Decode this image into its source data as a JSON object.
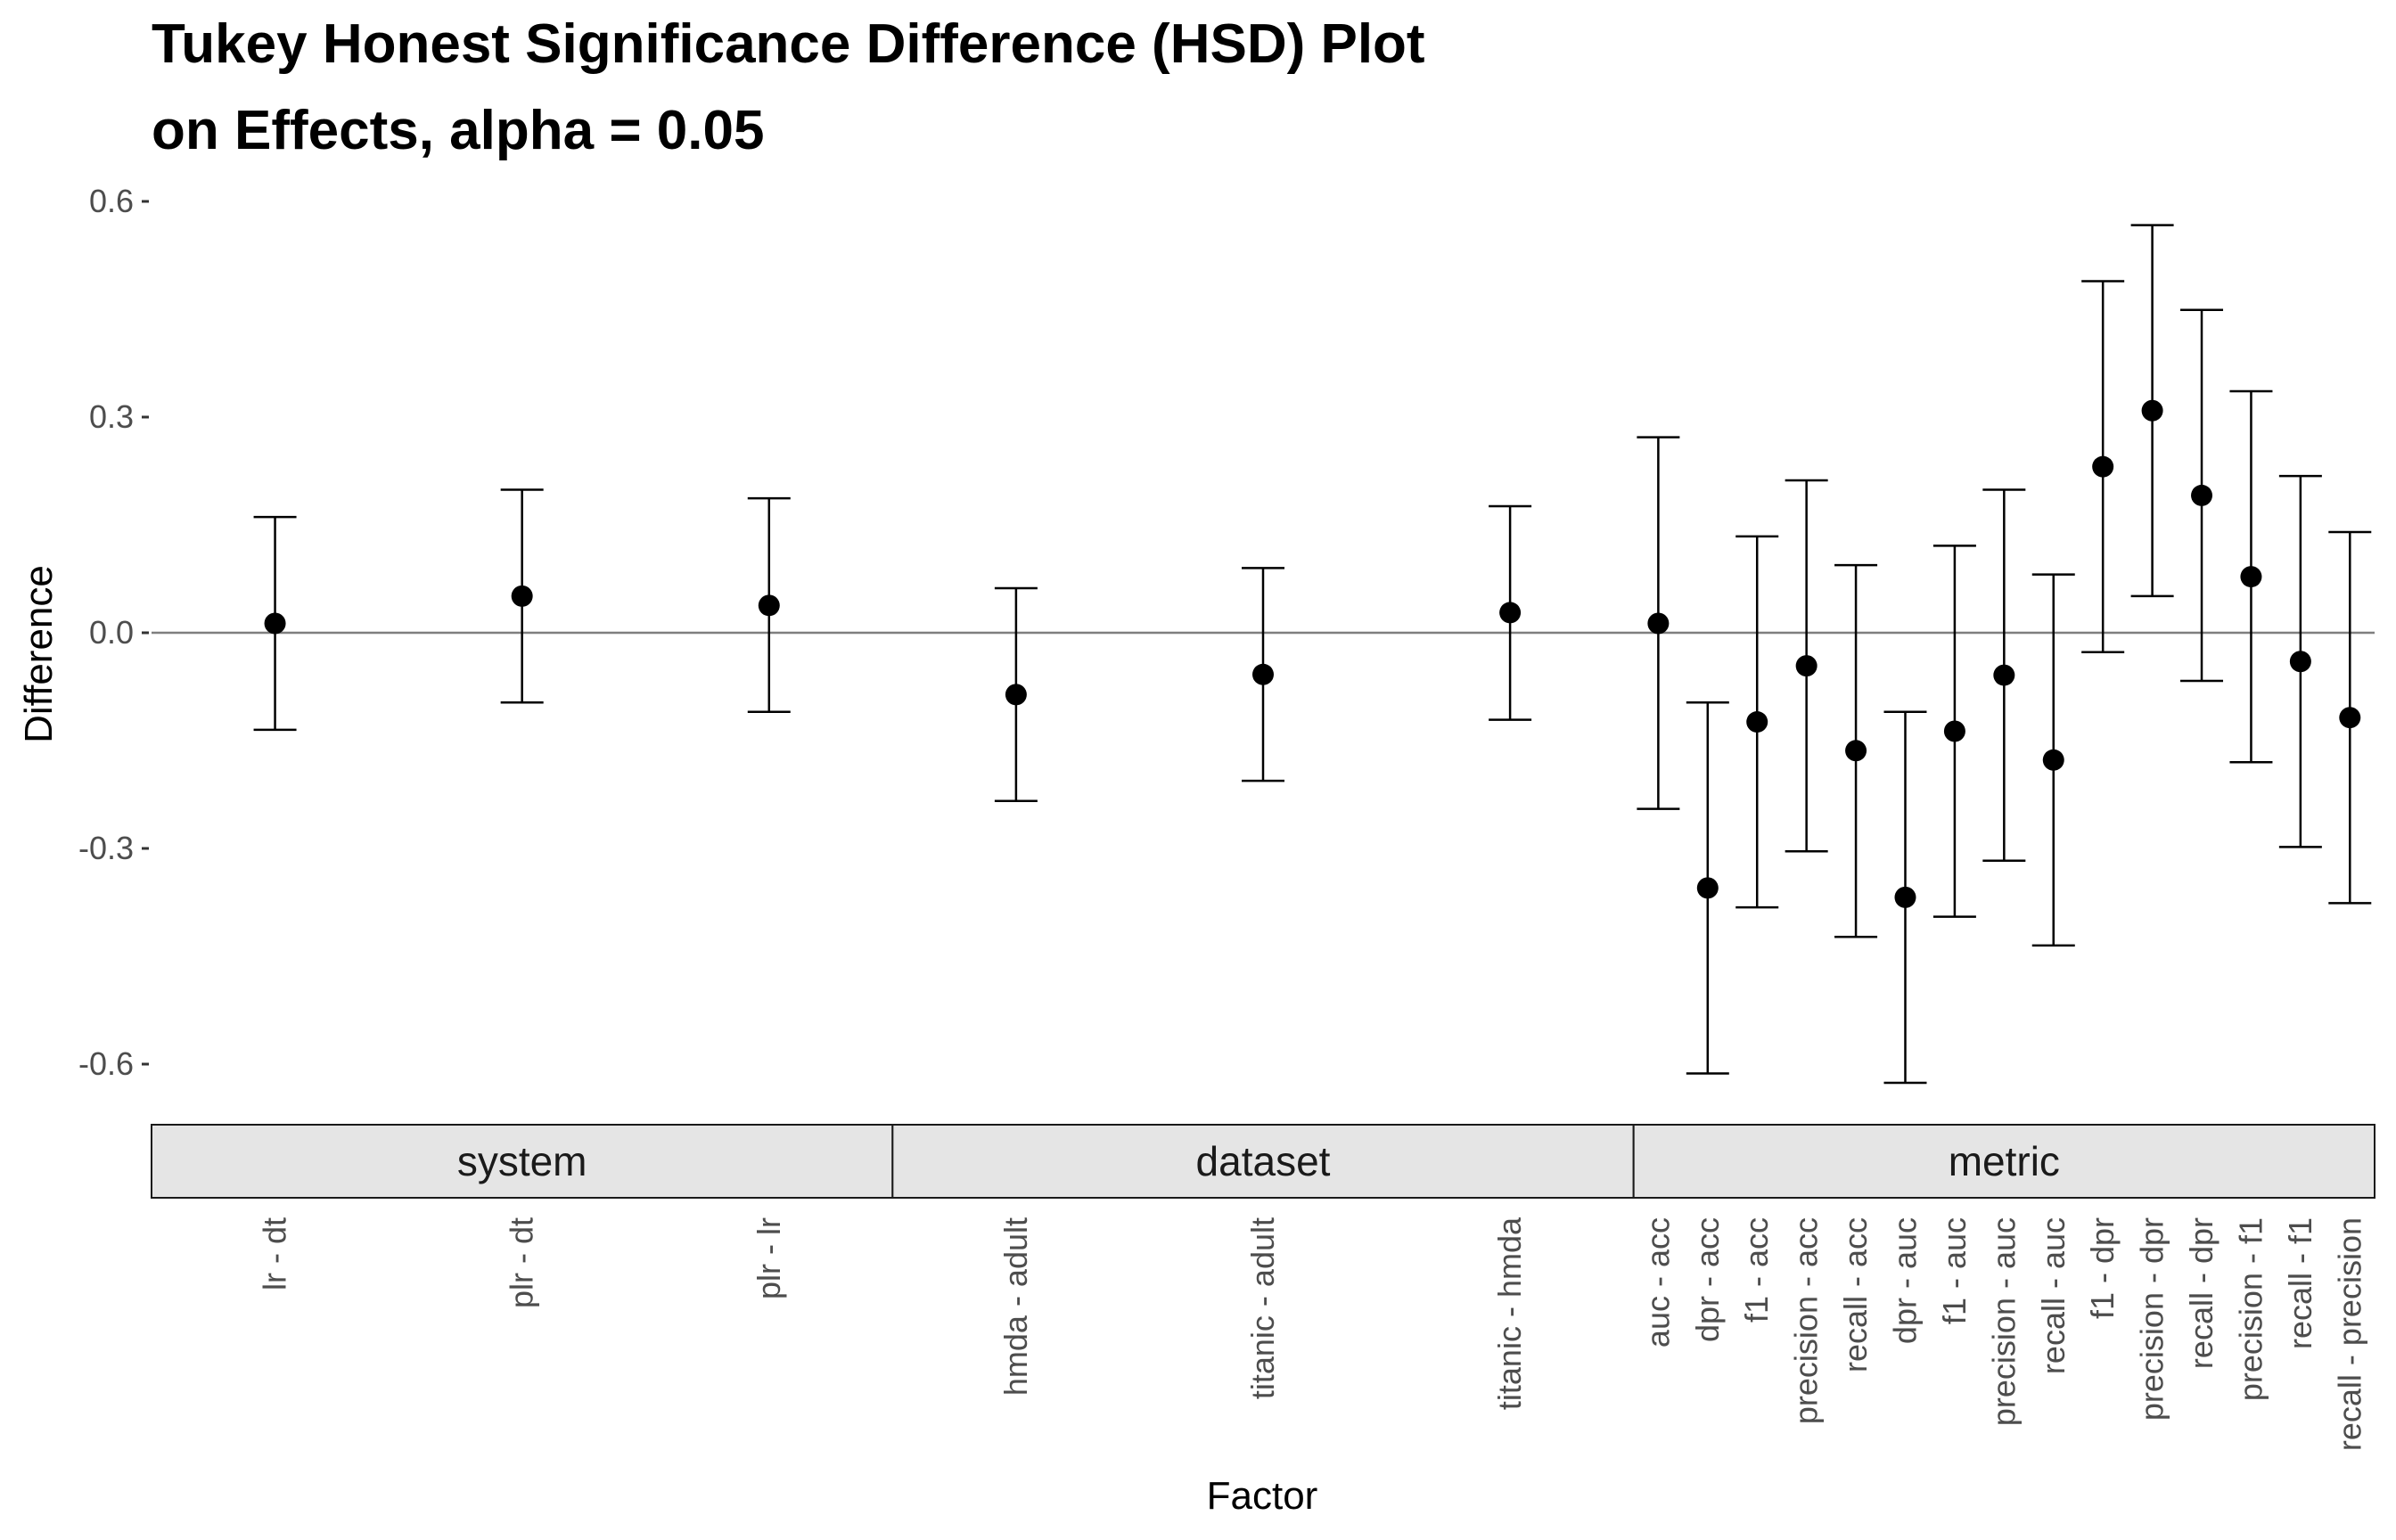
{
  "chart_data": {
    "type": "scatter",
    "title_line1": "Tukey Honest Significance Difference (HSD) Plot",
    "title_line2": "on Effects, alpha = 0.05",
    "xlabel": "Factor",
    "ylabel": "Difference",
    "ylim": [
      -0.68,
      0.6
    ],
    "yticks": [
      0.6,
      0.3,
      0.0,
      -0.3,
      -0.6
    ],
    "ytick_labels": [
      "0.6",
      "0.3",
      "0.0",
      "-0.3",
      "-0.6"
    ],
    "reference_line": 0.0,
    "facet_column": "x-axis strips",
    "panels": [
      {
        "name": "system",
        "points": [
          {
            "label": "lr - dt",
            "diff": 0.013,
            "lower": -0.135,
            "upper": 0.161
          },
          {
            "label": "plr - dt",
            "diff": 0.051,
            "lower": -0.097,
            "upper": 0.199
          },
          {
            "label": "plr - lr",
            "diff": 0.038,
            "lower": -0.11,
            "upper": 0.187
          }
        ]
      },
      {
        "name": "dataset",
        "points": [
          {
            "label": "hmda - adult",
            "diff": -0.086,
            "lower": -0.234,
            "upper": 0.062
          },
          {
            "label": "titanic - adult",
            "diff": -0.058,
            "lower": -0.206,
            "upper": 0.09
          },
          {
            "label": "titanic - hmda",
            "diff": 0.028,
            "lower": -0.121,
            "upper": 0.176
          }
        ]
      },
      {
        "name": "metric",
        "points": [
          {
            "label": "auc - acc",
            "diff": 0.013,
            "lower": -0.245,
            "upper": 0.272
          },
          {
            "label": "dpr - acc",
            "diff": -0.355,
            "lower": -0.613,
            "upper": -0.097
          },
          {
            "label": "f1 - acc",
            "diff": -0.124,
            "lower": -0.382,
            "upper": 0.134
          },
          {
            "label": "precision - acc",
            "diff": -0.046,
            "lower": -0.304,
            "upper": 0.212
          },
          {
            "label": "recall - acc",
            "diff": -0.164,
            "lower": -0.423,
            "upper": 0.094
          },
          {
            "label": "dpr - auc",
            "diff": -0.368,
            "lower": -0.626,
            "upper": -0.11
          },
          {
            "label": "f1 - auc",
            "diff": -0.137,
            "lower": -0.395,
            "upper": 0.121
          },
          {
            "label": "precision - auc",
            "diff": -0.059,
            "lower": -0.317,
            "upper": 0.199
          },
          {
            "label": "recall - auc",
            "diff": -0.177,
            "lower": -0.435,
            "upper": 0.081
          },
          {
            "label": "f1 - dpr",
            "diff": 0.231,
            "lower": -0.027,
            "upper": 0.489
          },
          {
            "label": "precision - dpr",
            "diff": 0.309,
            "lower": 0.051,
            "upper": 0.567
          },
          {
            "label": "recall - dpr",
            "diff": 0.191,
            "lower": -0.067,
            "upper": 0.449
          },
          {
            "label": "precision - f1",
            "diff": 0.078,
            "lower": -0.18,
            "upper": 0.336
          },
          {
            "label": "recall - f1",
            "diff": -0.04,
            "lower": -0.298,
            "upper": 0.218
          },
          {
            "label": "recall - precision",
            "diff": -0.118,
            "lower": -0.376,
            "upper": 0.14
          }
        ]
      }
    ],
    "colors": {
      "points": "#000000",
      "errorbars": "#000000",
      "reference_line": "#7f7f7f",
      "strip_fill": "#e5e5e5",
      "strip_border": "#1a1a1a",
      "tick_text": "#4d4d4d"
    }
  }
}
